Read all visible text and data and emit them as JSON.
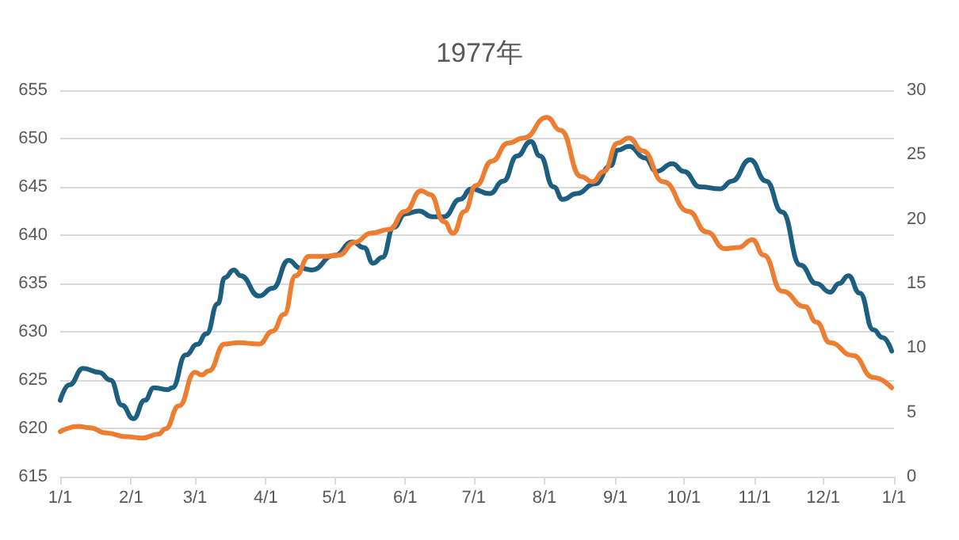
{
  "chart_data": {
    "type": "line",
    "title": "1977年",
    "xlim": [
      "1977-01-01",
      "1978-01-01"
    ],
    "xticks": [
      {
        "value": "1977-01-01",
        "label": "1/1"
      },
      {
        "value": "1977-02-01",
        "label": "2/1"
      },
      {
        "value": "1977-03-01",
        "label": "3/1"
      },
      {
        "value": "1977-04-01",
        "label": "4/1"
      },
      {
        "value": "1977-05-01",
        "label": "5/1"
      },
      {
        "value": "1977-06-01",
        "label": "6/1"
      },
      {
        "value": "1977-07-01",
        "label": "7/1"
      },
      {
        "value": "1977-08-01",
        "label": "8/1"
      },
      {
        "value": "1977-09-01",
        "label": "9/1"
      },
      {
        "value": "1977-10-01",
        "label": "10/1"
      },
      {
        "value": "1977-11-01",
        "label": "11/1"
      },
      {
        "value": "1977-12-01",
        "label": "12/1"
      },
      {
        "value": "1978-01-01",
        "label": "1/1"
      }
    ],
    "ylim": [
      615,
      655
    ],
    "yticks": [
      615,
      620,
      625,
      630,
      635,
      640,
      645,
      650,
      655
    ],
    "y2lim": [
      0,
      30
    ],
    "y2ticks": [
      0,
      5,
      10,
      15,
      20,
      25,
      30
    ],
    "grid": "y",
    "marker": "none",
    "line_style": "solid",
    "series": [
      {
        "color": "#1d5f80",
        "x": [
          "1977-01-01",
          "1977-01-05",
          "1977-01-11",
          "1977-01-18",
          "1977-01-23",
          "1977-01-28",
          "1977-02-02",
          "1977-02-07",
          "1977-02-11",
          "1977-02-17",
          "1977-02-19",
          "1977-02-25",
          "1977-03-02",
          "1977-03-06",
          "1977-03-11",
          "1977-03-14",
          "1977-03-18",
          "1977-03-21",
          "1977-03-29",
          "1977-04-04",
          "1977-04-11",
          "1977-04-16",
          "1977-04-21",
          "1977-05-01",
          "1977-05-09",
          "1977-05-14",
          "1977-05-18",
          "1977-05-22",
          "1977-05-27",
          "1977-06-01",
          "1977-06-07",
          "1977-06-13",
          "1977-06-18",
          "1977-06-25",
          "1977-06-30",
          "1977-07-08",
          "1977-07-14",
          "1977-07-20",
          "1977-07-26",
          "1977-07-30",
          "1977-08-05",
          "1977-08-09",
          "1977-08-15",
          "1977-08-23",
          "1977-08-30",
          "1977-09-02",
          "1977-09-07",
          "1977-09-14",
          "1977-09-19",
          "1977-09-26",
          "1977-10-01",
          "1977-10-08",
          "1977-10-17",
          "1977-10-22",
          "1977-10-30",
          "1977-11-06",
          "1977-11-13",
          "1977-11-21",
          "1977-11-28",
          "1977-12-04",
          "1977-12-08",
          "1977-12-12",
          "1977-12-17",
          "1977-12-23",
          "1977-12-27",
          "1977-12-31"
        ],
        "values": [
          622.9,
          624.5,
          626.2,
          625.8,
          625,
          622.4,
          621,
          622.9,
          624.2,
          624,
          624.2,
          627.6,
          628.7,
          629.8,
          632.9,
          635.6,
          636.4,
          635.8,
          633.7,
          634.5,
          637.4,
          636.6,
          636.4,
          637.9,
          639.3,
          638.7,
          637.1,
          637.7,
          640.8,
          642.2,
          642.5,
          641.9,
          641.9,
          643.7,
          644.8,
          644.3,
          645.6,
          648.2,
          649.7,
          648.2,
          645,
          643.7,
          644.3,
          645.3,
          647.2,
          648.8,
          649.2,
          648,
          646.6,
          647.4,
          646.6,
          645,
          644.8,
          645.6,
          647.8,
          645.6,
          642.4,
          636.9,
          635,
          634.1,
          635,
          635.8,
          634,
          630.2,
          629.4,
          628
        ]
      },
      {
        "color": "#ed7d31",
        "axis": "y2",
        "x": [
          "1977-01-01",
          "1977-01-09",
          "1977-01-14",
          "1977-01-21",
          "1977-01-30",
          "1977-02-06",
          "1977-02-13",
          "1977-02-16",
          "1977-02-22",
          "1977-03-01",
          "1977-03-04",
          "1977-03-07",
          "1977-03-14",
          "1977-03-20",
          "1977-03-29",
          "1977-04-04",
          "1977-04-09",
          "1977-04-14",
          "1977-04-20",
          "1977-04-27",
          "1977-05-03",
          "1977-05-10",
          "1977-05-17",
          "1977-05-25",
          "1977-06-01",
          "1977-06-08",
          "1977-06-12",
          "1977-06-18",
          "1977-06-22",
          "1977-06-27",
          "1977-07-02",
          "1977-07-09",
          "1977-07-16",
          "1977-07-23",
          "1977-08-02",
          "1977-08-08",
          "1977-08-17",
          "1977-08-22",
          "1977-08-27",
          "1977-09-02",
          "1977-09-07",
          "1977-09-13",
          "1977-09-22",
          "1977-10-03",
          "1977-10-11",
          "1977-10-19",
          "1977-10-25",
          "1977-10-31",
          "1977-11-05",
          "1977-11-13",
          "1977-11-23",
          "1977-11-28",
          "1977-12-04",
          "1977-12-14",
          "1977-12-23",
          "1977-12-31"
        ],
        "values": [
          3.5,
          3.9,
          3.8,
          3.4,
          3.1,
          3.0,
          3.3,
          3.7,
          5.5,
          8.1,
          7.9,
          8.2,
          10.3,
          10.4,
          10.3,
          11.3,
          12.6,
          15.6,
          17.1,
          17.1,
          17.2,
          18.2,
          18.9,
          19.2,
          20.6,
          22.2,
          21.9,
          19.8,
          18.9,
          20.6,
          22.6,
          24.5,
          25.9,
          26.3,
          27.9,
          26.9,
          23.3,
          22.9,
          23.7,
          25.9,
          26.3,
          25.3,
          22.9,
          20.6,
          19,
          17.7,
          17.8,
          18.4,
          17.2,
          14.4,
          13.2,
          12,
          10.4,
          9.4,
          7.7,
          6.9
        ]
      }
    ]
  }
}
